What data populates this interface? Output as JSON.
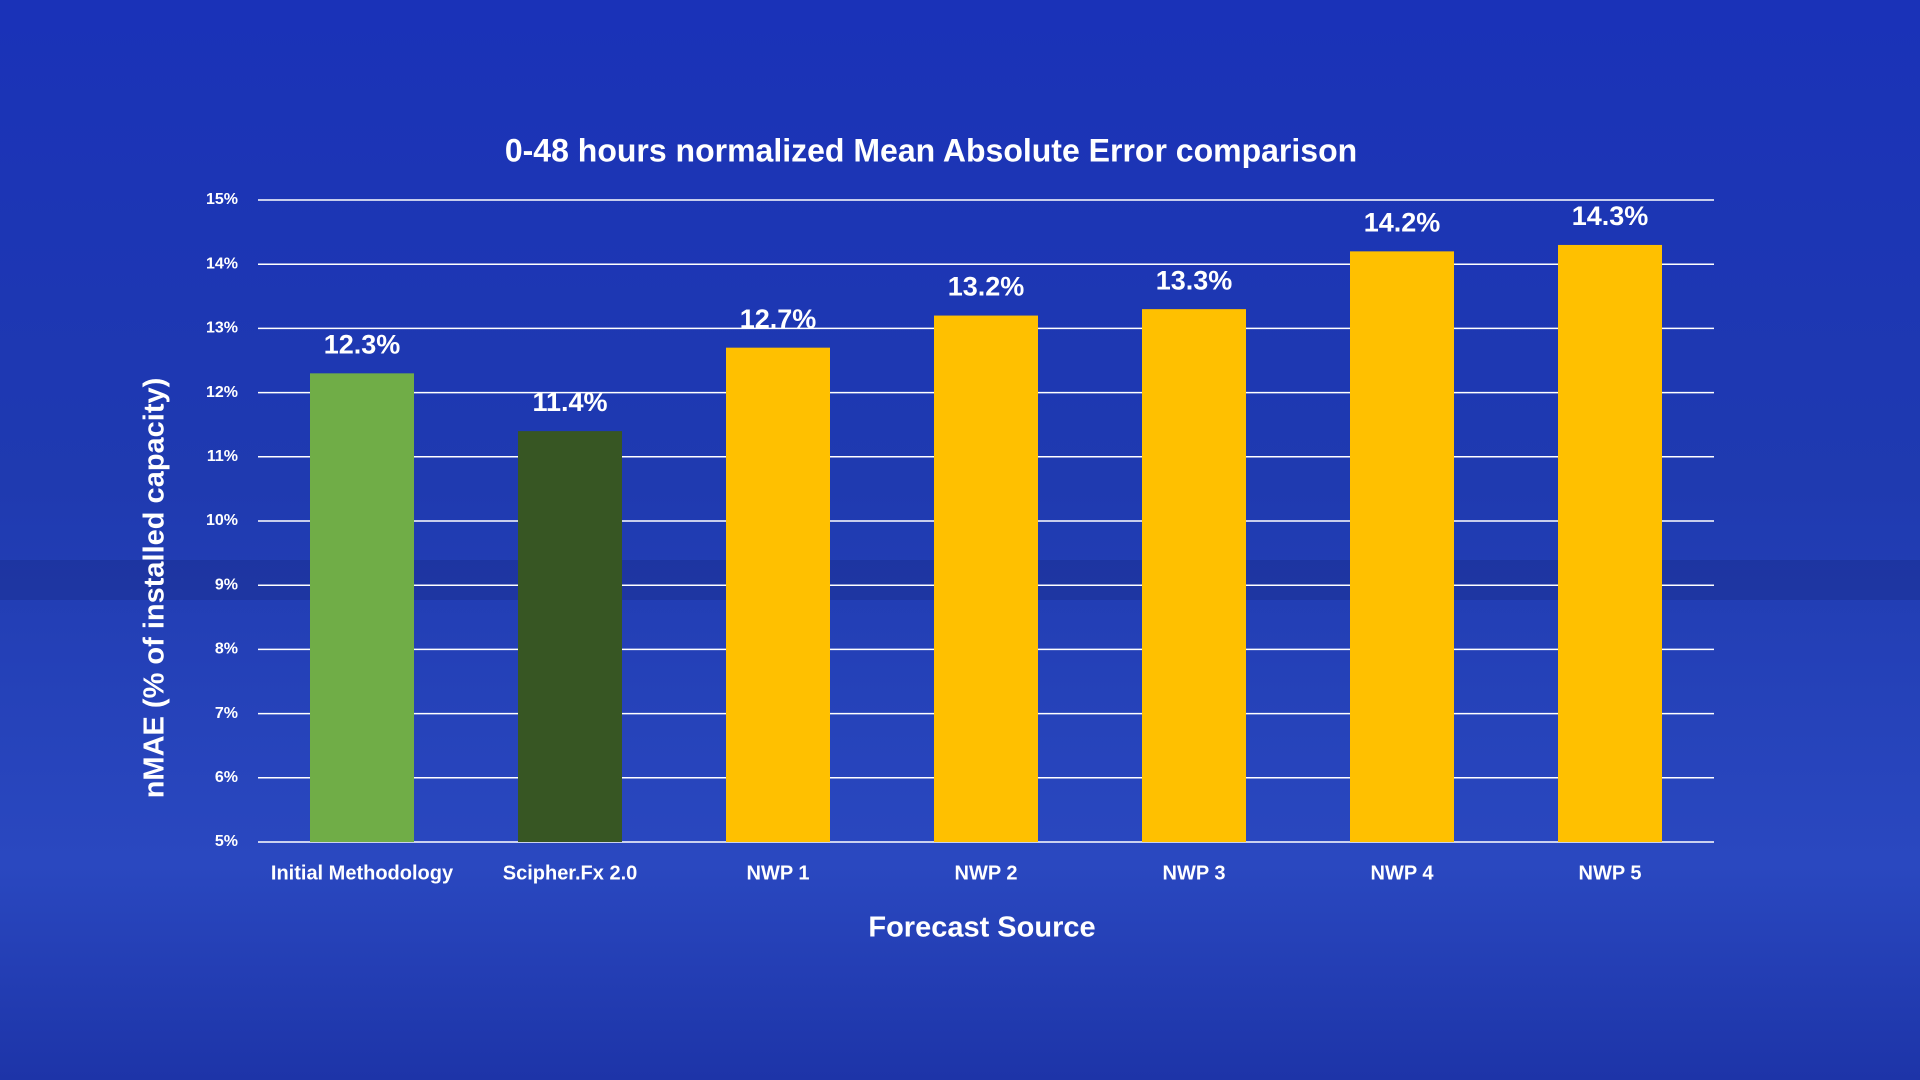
{
  "chart_data": {
    "type": "bar",
    "title": "0-48 hours normalized Mean Absolute Error comparison",
    "x_label": "Forecast Source",
    "y_label": "nMAE (% of installed capacity)",
    "categories": [
      "Initial Methodology",
      "Scipher.Fx 2.0",
      "NWP 1",
      "NWP 2",
      "NWP 3",
      "NWP 4",
      "NWP 5"
    ],
    "values": [
      12.3,
      11.4,
      12.7,
      13.2,
      13.3,
      14.2,
      14.3
    ],
    "value_labels": [
      "12.3%",
      "11.4%",
      "12.7%",
      "13.2%",
      "13.3%",
      "14.2%",
      "14.3%"
    ],
    "colors": [
      "#70ad47",
      "#375623",
      "#ffc000",
      "#ffc000",
      "#ffc000",
      "#ffc000",
      "#ffc000"
    ],
    "ylim": [
      5,
      15
    ],
    "yticks": [
      {
        "value": 5,
        "label": "5%"
      },
      {
        "value": 6,
        "label": "6%"
      },
      {
        "value": 7,
        "label": "7%"
      },
      {
        "value": 8,
        "label": "8%"
      },
      {
        "value": 9,
        "label": "9%"
      },
      {
        "value": 10,
        "label": "10%"
      },
      {
        "value": 11,
        "label": "11%"
      },
      {
        "value": 12,
        "label": "12%"
      },
      {
        "value": 13,
        "label": "13%"
      },
      {
        "value": 14,
        "label": "14%"
      },
      {
        "value": 15,
        "label": "15%"
      }
    ],
    "grid": true
  }
}
